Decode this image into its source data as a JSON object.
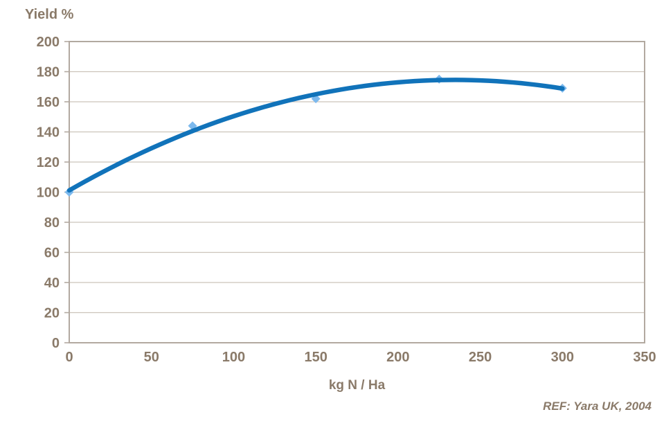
{
  "chart_data": {
    "type": "scatter",
    "title": "Yield %",
    "xlabel": "kg N / Ha",
    "ylabel": "Yield %",
    "annotation": "REF: Yara UK, 2004",
    "x": [
      0,
      75,
      150,
      225,
      300
    ],
    "y": [
      100,
      144,
      162,
      175,
      169
    ],
    "xlim": [
      0,
      350
    ],
    "ylim": [
      0,
      200
    ],
    "xticks": [
      0,
      50,
      100,
      150,
      200,
      250,
      300,
      350
    ],
    "yticks": [
      0,
      20,
      40,
      60,
      80,
      100,
      120,
      140,
      160,
      180,
      200
    ],
    "grid": "horizontal-only",
    "legend": "none",
    "trendline": {
      "type": "quadratic",
      "coefficients": {
        "a": 101.2,
        "b": 0.62533,
        "c": -0.0013333
      },
      "x_range": [
        0,
        300
      ]
    },
    "colors": {
      "curve": "#1173ba",
      "marker": "#7db9ed",
      "text": "#8a7a69",
      "axis_border": "#b2a9a0",
      "gridline": "#ccc3ba",
      "background": "#ffffff"
    }
  }
}
